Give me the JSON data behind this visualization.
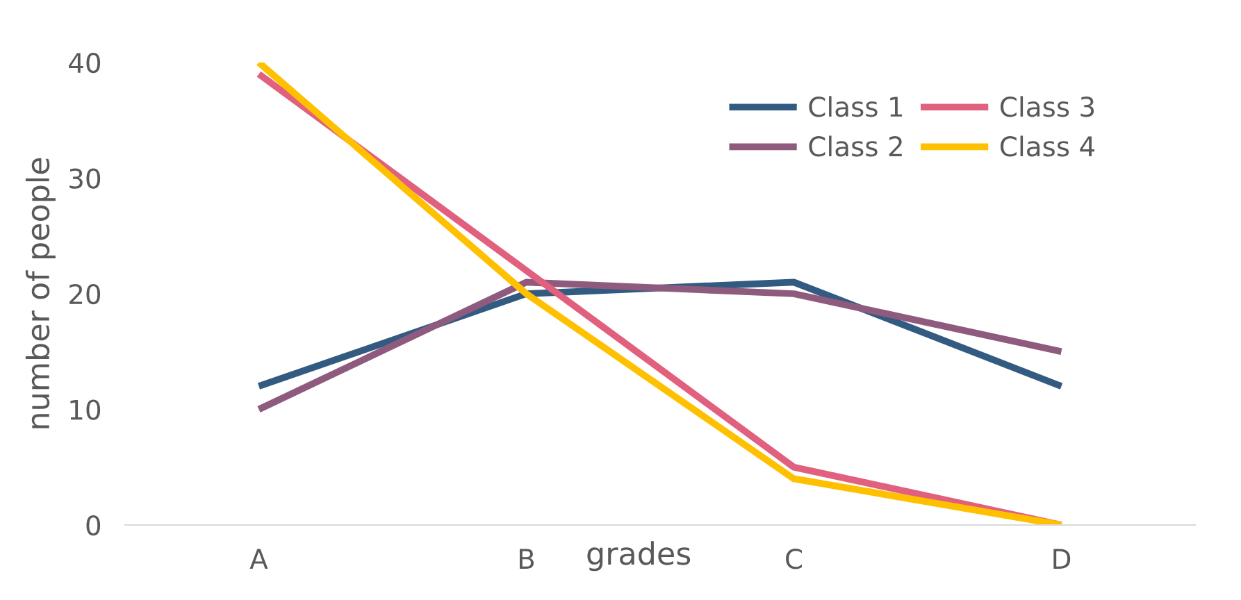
{
  "chart_data": {
    "type": "line",
    "xlabel": "grades",
    "ylabel": "number of people",
    "categories": [
      "A",
      "B",
      "C",
      "D"
    ],
    "series": [
      {
        "name": "Class 1",
        "color": "#335a80",
        "values": [
          12,
          20,
          21,
          12
        ]
      },
      {
        "name": "Class 2",
        "color": "#8e5b7f",
        "values": [
          10,
          21,
          20,
          15
        ]
      },
      {
        "name": "Class 3",
        "color": "#e0607e",
        "values": [
          39,
          22,
          5,
          0
        ]
      },
      {
        "name": "Class 4",
        "color": "#ffc000",
        "values": [
          40,
          20,
          4,
          0
        ]
      }
    ],
    "ylim": [
      0,
      40
    ],
    "yticks": [
      0,
      10,
      20,
      30,
      40
    ],
    "grid": false,
    "legend": "top right",
    "line_style": "solid",
    "marker": "none"
  }
}
